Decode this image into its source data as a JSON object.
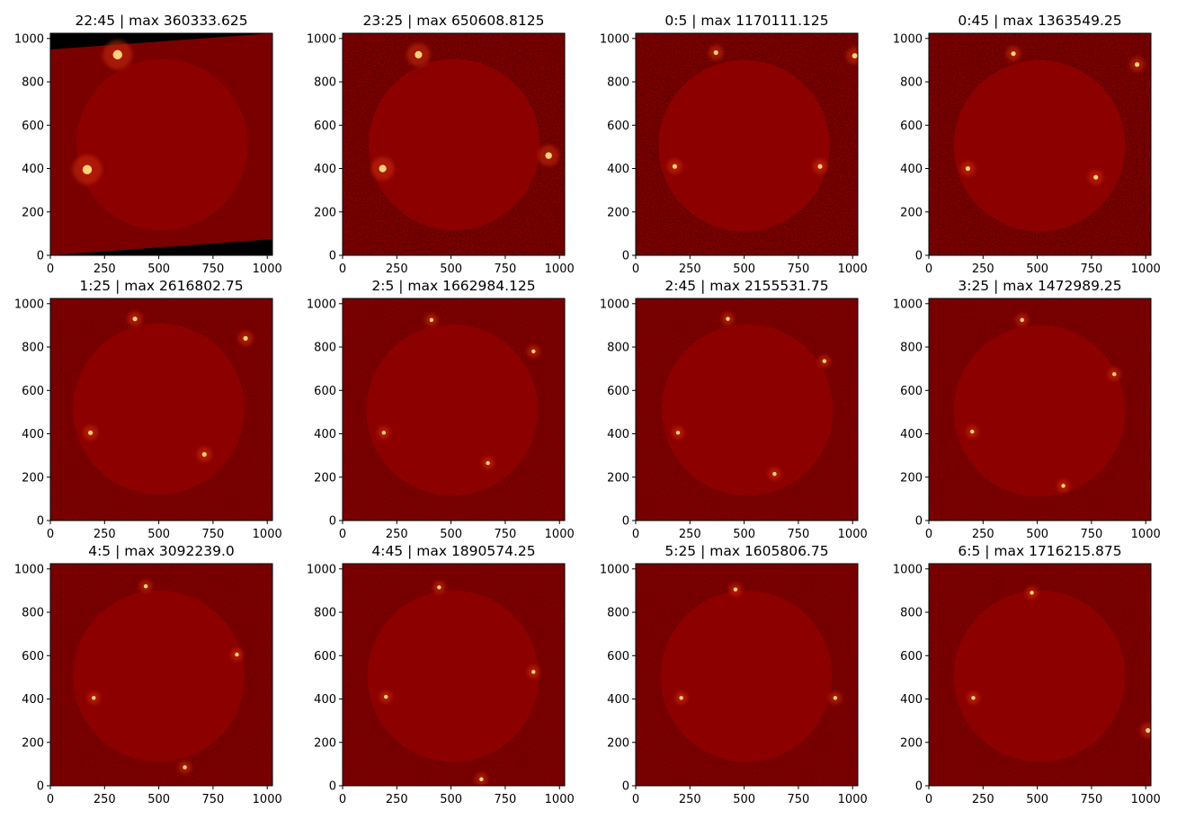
{
  "figure": {
    "colors": {
      "background": "#7a0000",
      "disk": "#8c0000",
      "noise_dark": "#1a0000",
      "bright": "#ffd27a",
      "axis": "#000000"
    }
  },
  "chart_data": [
    {
      "type": "heatmap",
      "title": "22:45 | max 360333.625",
      "xlim": [
        0,
        1024
      ],
      "ylim": [
        0,
        1024
      ],
      "xticks": [
        0,
        250,
        500,
        750,
        1000
      ],
      "yticks": [
        0,
        200,
        400,
        600,
        800,
        1000
      ],
      "disk_center": [
        515,
        510
      ],
      "disk_radius": 395,
      "style": "smooth",
      "bright_points": [
        [
          310,
          925,
          14
        ],
        [
          170,
          395,
          14
        ]
      ]
    },
    {
      "type": "heatmap",
      "title": "23:25 | max 650608.8125",
      "xlim": [
        0,
        1024
      ],
      "ylim": [
        0,
        1024
      ],
      "xticks": [
        0,
        250,
        500,
        750,
        1000
      ],
      "yticks": [
        0,
        200,
        400,
        600,
        800,
        1000
      ],
      "disk_center": [
        515,
        510
      ],
      "disk_radius": 395,
      "style": "noisy",
      "bright_points": [
        [
          350,
          925,
          11
        ],
        [
          185,
          400,
          11
        ],
        [
          950,
          460,
          10
        ]
      ]
    },
    {
      "type": "heatmap",
      "title": "0:5 | max 1170111.125",
      "xlim": [
        0,
        1024
      ],
      "ylim": [
        0,
        1024
      ],
      "xticks": [
        0,
        250,
        500,
        750,
        1000
      ],
      "yticks": [
        0,
        200,
        400,
        600,
        800,
        1000
      ],
      "disk_center": [
        500,
        505
      ],
      "disk_radius": 395,
      "style": "noisy",
      "bright_points": [
        [
          370,
          935,
          7
        ],
        [
          180,
          410,
          7
        ],
        [
          850,
          410,
          7
        ],
        [
          1010,
          920,
          8
        ]
      ]
    },
    {
      "type": "heatmap",
      "title": "0:45 | max 1363549.25",
      "xlim": [
        0,
        1024
      ],
      "ylim": [
        0,
        1024
      ],
      "xticks": [
        0,
        250,
        500,
        750,
        1000
      ],
      "yticks": [
        0,
        200,
        400,
        600,
        800,
        1000
      ],
      "disk_center": [
        510,
        505
      ],
      "disk_radius": 395,
      "style": "noisy",
      "bright_points": [
        [
          390,
          930,
          7
        ],
        [
          180,
          400,
          7
        ],
        [
          770,
          360,
          7
        ],
        [
          960,
          880,
          7
        ]
      ]
    },
    {
      "type": "heatmap",
      "title": "1:25 | max 2616802.75",
      "xlim": [
        0,
        1024
      ],
      "ylim": [
        0,
        1024
      ],
      "xticks": [
        0,
        250,
        500,
        750,
        1000
      ],
      "yticks": [
        0,
        200,
        400,
        600,
        800,
        1000
      ],
      "disk_center": [
        500,
        515
      ],
      "disk_radius": 395,
      "style": "sparse",
      "bright_points": [
        [
          390,
          930,
          7
        ],
        [
          185,
          405,
          7
        ],
        [
          710,
          305,
          7
        ],
        [
          900,
          840,
          7
        ]
      ]
    },
    {
      "type": "heatmap",
      "title": "2:5 | max 1662984.125",
      "xlim": [
        0,
        1024
      ],
      "ylim": [
        0,
        1024
      ],
      "xticks": [
        0,
        250,
        500,
        750,
        1000
      ],
      "yticks": [
        0,
        200,
        400,
        600,
        800,
        1000
      ],
      "disk_center": [
        505,
        510
      ],
      "disk_radius": 395,
      "style": "sparse",
      "bright_points": [
        [
          410,
          925,
          6
        ],
        [
          190,
          405,
          6
        ],
        [
          670,
          265,
          6
        ],
        [
          880,
          780,
          6
        ]
      ]
    },
    {
      "type": "heatmap",
      "title": "2:45 | max 2155531.75",
      "xlim": [
        0,
        1024
      ],
      "ylim": [
        0,
        1024
      ],
      "xticks": [
        0,
        250,
        500,
        750,
        1000
      ],
      "yticks": [
        0,
        200,
        400,
        600,
        800,
        1000
      ],
      "disk_center": [
        515,
        510
      ],
      "disk_radius": 395,
      "style": "sparse",
      "bright_points": [
        [
          425,
          930,
          6
        ],
        [
          195,
          405,
          6
        ],
        [
          640,
          215,
          6
        ],
        [
          870,
          735,
          6
        ]
      ]
    },
    {
      "type": "heatmap",
      "title": "3:25 | max 1472989.25",
      "xlim": [
        0,
        1024
      ],
      "ylim": [
        0,
        1024
      ],
      "xticks": [
        0,
        250,
        500,
        750,
        1000
      ],
      "yticks": [
        0,
        200,
        400,
        600,
        800,
        1000
      ],
      "disk_center": [
        510,
        505
      ],
      "disk_radius": 395,
      "style": "sparse",
      "bright_points": [
        [
          430,
          925,
          6
        ],
        [
          200,
          410,
          6
        ],
        [
          620,
          160,
          6
        ],
        [
          855,
          675,
          6
        ]
      ]
    },
    {
      "type": "heatmap",
      "title": "4:5 | max 3092239.0",
      "xlim": [
        0,
        1024
      ],
      "ylim": [
        0,
        1024
      ],
      "xticks": [
        0,
        250,
        500,
        750,
        1000
      ],
      "yticks": [
        0,
        200,
        400,
        600,
        800,
        1000
      ],
      "disk_center": [
        500,
        505
      ],
      "disk_radius": 395,
      "style": "sparse",
      "bright_points": [
        [
          440,
          920,
          6
        ],
        [
          200,
          405,
          6
        ],
        [
          620,
          85,
          6
        ],
        [
          860,
          605,
          6
        ]
      ]
    },
    {
      "type": "heatmap",
      "title": "4:45 | max 1890574.25",
      "xlim": [
        0,
        1024
      ],
      "ylim": [
        0,
        1024
      ],
      "xticks": [
        0,
        250,
        500,
        750,
        1000
      ],
      "yticks": [
        0,
        200,
        400,
        600,
        800,
        1000
      ],
      "disk_center": [
        510,
        505
      ],
      "disk_radius": 395,
      "style": "sparse",
      "bright_points": [
        [
          445,
          915,
          6
        ],
        [
          200,
          410,
          6
        ],
        [
          640,
          30,
          6
        ],
        [
          880,
          525,
          6
        ]
      ]
    },
    {
      "type": "heatmap",
      "title": "5:25 | max 1605806.75",
      "xlim": [
        0,
        1024
      ],
      "ylim": [
        0,
        1024
      ],
      "xticks": [
        0,
        250,
        500,
        750,
        1000
      ],
      "yticks": [
        0,
        200,
        400,
        600,
        800,
        1000
      ],
      "disk_center": [
        510,
        505
      ],
      "disk_radius": 395,
      "style": "smooth",
      "bright_points": [
        [
          460,
          905,
          6
        ],
        [
          210,
          405,
          6
        ],
        [
          920,
          405,
          6
        ]
      ]
    },
    {
      "type": "heatmap",
      "title": "6:5 | max 1716215.875",
      "xlim": [
        0,
        1024
      ],
      "ylim": [
        0,
        1024
      ],
      "xticks": [
        0,
        250,
        500,
        750,
        1000
      ],
      "yticks": [
        0,
        200,
        400,
        600,
        800,
        1000
      ],
      "disk_center": [
        510,
        505
      ],
      "disk_radius": 395,
      "style": "sparse",
      "bright_points": [
        [
          475,
          890,
          6
        ],
        [
          205,
          405,
          6
        ],
        [
          1010,
          255,
          7
        ]
      ]
    }
  ]
}
